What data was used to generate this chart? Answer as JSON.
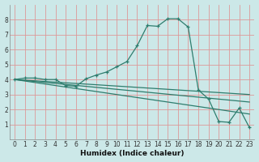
{
  "xlabel": "Humidex (Indice chaleur)",
  "bg_color": "#cce8e8",
  "grid_color": "#dd9999",
  "line_color": "#2e7d6e",
  "xlim": [
    -0.5,
    23.5
  ],
  "ylim": [
    0,
    9
  ],
  "xticks": [
    0,
    1,
    2,
    3,
    4,
    5,
    6,
    7,
    8,
    9,
    10,
    11,
    12,
    13,
    14,
    15,
    16,
    17,
    18,
    19,
    20,
    21,
    22,
    23
  ],
  "yticks": [
    1,
    2,
    3,
    4,
    5,
    6,
    7,
    8
  ],
  "lines": [
    {
      "x": [
        0,
        1,
        2,
        3,
        4,
        5,
        6,
        7,
        8,
        9,
        10,
        11,
        12,
        13,
        14,
        15,
        16,
        17,
        18,
        19,
        20,
        21,
        22,
        23
      ],
      "y": [
        4.0,
        4.1,
        4.1,
        4.0,
        4.0,
        3.6,
        3.55,
        4.05,
        4.3,
        4.5,
        4.85,
        5.2,
        6.25,
        7.6,
        7.55,
        8.05,
        8.05,
        7.5,
        3.3,
        2.7,
        1.2,
        1.15,
        2.1,
        0.8
      ],
      "marker": true
    },
    {
      "x": [
        0,
        23
      ],
      "y": [
        4.0,
        1.7
      ],
      "marker": false
    },
    {
      "x": [
        0,
        23
      ],
      "y": [
        4.0,
        2.5
      ],
      "marker": false
    },
    {
      "x": [
        0,
        23
      ],
      "y": [
        4.0,
        3.0
      ],
      "marker": false
    }
  ]
}
